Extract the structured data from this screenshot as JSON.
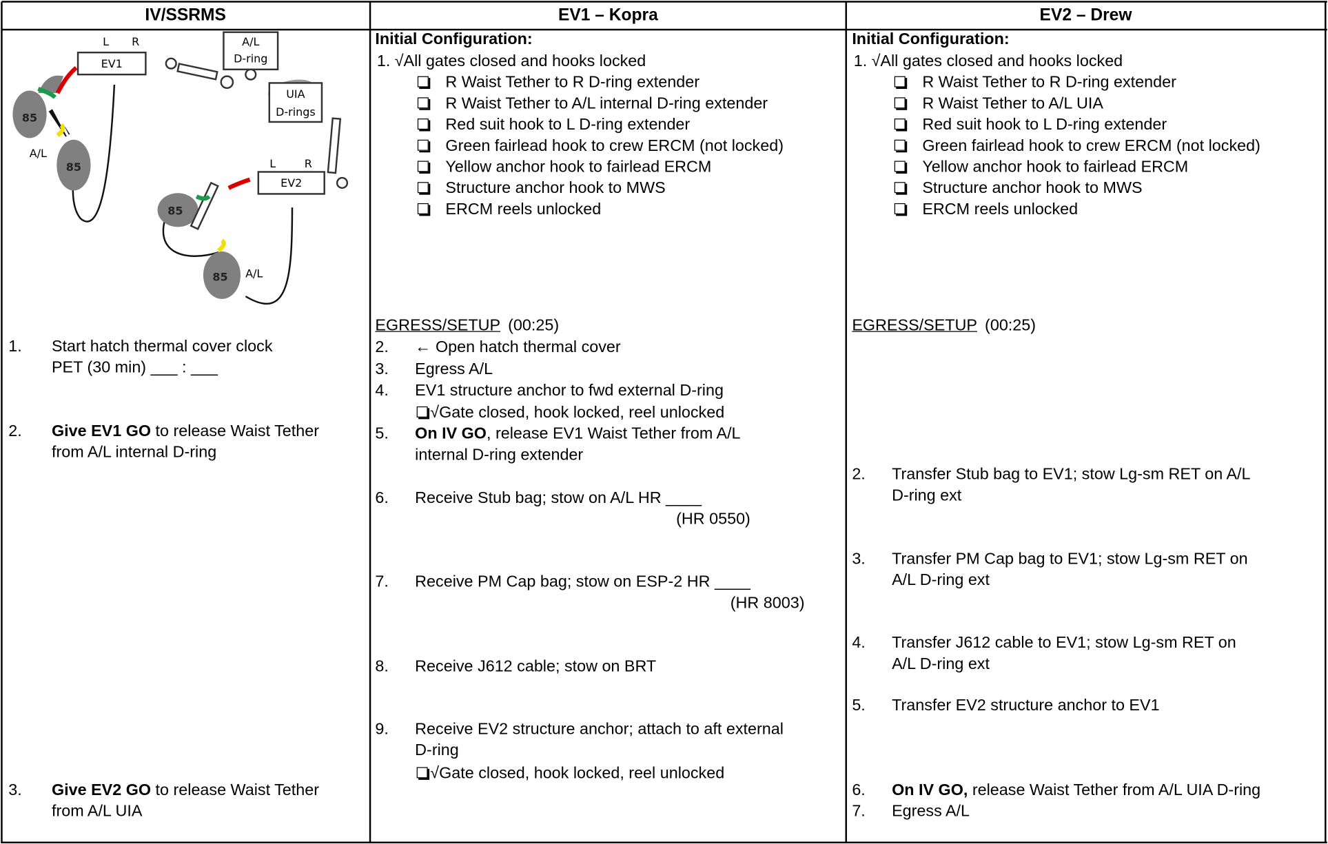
{
  "header": [
    "IV/SSRMS",
    "EV1 – Kopra",
    "EV2 – Drew"
  ],
  "iv": {
    "diagram_labels": [
      "L",
      "R",
      "EV1",
      "A/L",
      "D-ring",
      "UIA",
      "D-rings",
      "85",
      "85",
      "A/L",
      "85",
      "85",
      "A/L",
      "L",
      "R",
      "EV2"
    ],
    "steps": [
      {
        "num": "1.",
        "lines": [
          "Start hatch thermal cover clock",
          "PET (30 min) ___ : ___"
        ]
      },
      {
        "num": "2.",
        "bold": "Give EV1 GO",
        "lines": [
          " to release Waist Tether",
          "from A/L internal D-ring"
        ]
      },
      {
        "num": "3.",
        "bold": "Give EV2 GO",
        "lines": [
          " to release Waist Tether",
          "from A/L UIA"
        ]
      }
    ]
  },
  "ev1": {
    "config_title": "Initial Configuration:",
    "config_step": {
      "num": "1.",
      "text": "√All gates closed and hooks locked"
    },
    "checklist": [
      "R Waist Tether to R D-ring extender",
      "R Waist Tether to A/L internal D-ring extender",
      "Red suit hook to L D-ring extender",
      "Green fairlead hook to crew ERCM (not locked)",
      "Yellow anchor hook to fairlead ERCM",
      "Structure anchor hook to MWS",
      "ERCM reels unlocked"
    ],
    "phase": {
      "title": "EGRESS/SETUP",
      "time": "(00:25)"
    },
    "steps": [
      {
        "num": "2.",
        "lines": [
          "← Open hatch thermal cover"
        ]
      },
      {
        "num": "3.",
        "lines": [
          "Egress A/L"
        ]
      },
      {
        "num": "4.",
        "lines": [
          "EV1 structure anchor to fwd external D-ring"
        ],
        "sub": "√Gate closed, hook locked, reel unlocked"
      },
      {
        "num": "5.",
        "bold": "On IV GO",
        "lines": [
          ", release EV1 Waist Tether from A/L",
          "internal D-ring extender"
        ]
      },
      {
        "num": "6.",
        "lines": [
          "Receive Stub bag; stow on A/L HR ____"
        ],
        "ref": "(HR 0550)"
      },
      {
        "num": "7.",
        "lines": [
          "Receive PM Cap bag; stow on ESP-2 HR ____"
        ],
        "ref": "(HR 8003)"
      },
      {
        "num": "8.",
        "lines": [
          "Receive J612 cable; stow on BRT"
        ]
      },
      {
        "num": "9.",
        "lines": [
          "Receive EV2 structure anchor; attach to aft external",
          "D-ring"
        ],
        "sub": "√Gate closed, hook locked, reel unlocked"
      }
    ]
  },
  "ev2": {
    "config_title": "Initial Configuration:",
    "config_step": {
      "num": "1.",
      "text": "√All gates closed and hooks locked"
    },
    "checklist": [
      "R Waist Tether to R D-ring extender",
      "R Waist Tether to A/L UIA",
      "Red suit hook to L D-ring extender",
      "Green fairlead hook to crew ERCM (not locked)",
      "Yellow anchor hook to fairlead ERCM",
      "Structure anchor hook to MWS",
      "ERCM reels unlocked"
    ],
    "phase": {
      "title": "EGRESS/SETUP",
      "time": "(00:25)"
    },
    "steps": [
      {
        "num": "2.",
        "lines": [
          "Transfer Stub bag to EV1; stow Lg-sm RET on A/L",
          "D-ring ext"
        ]
      },
      {
        "num": "3.",
        "lines": [
          "Transfer PM Cap bag to EV1; stow Lg-sm RET on",
          "A/L D-ring ext"
        ]
      },
      {
        "num": "4.",
        "lines": [
          "Transfer J612 cable to EV1; stow Lg-sm RET on",
          "A/L D-ring ext"
        ]
      },
      {
        "num": "5.",
        "lines": [
          "Transfer EV2 structure anchor to EV1"
        ]
      },
      {
        "num": "6.",
        "bold": "On IV GO,",
        "lines": [
          " release Waist Tether from A/L UIA D-ring"
        ]
      },
      {
        "num": "7.",
        "lines": [
          "Egress A/L"
        ]
      }
    ]
  }
}
